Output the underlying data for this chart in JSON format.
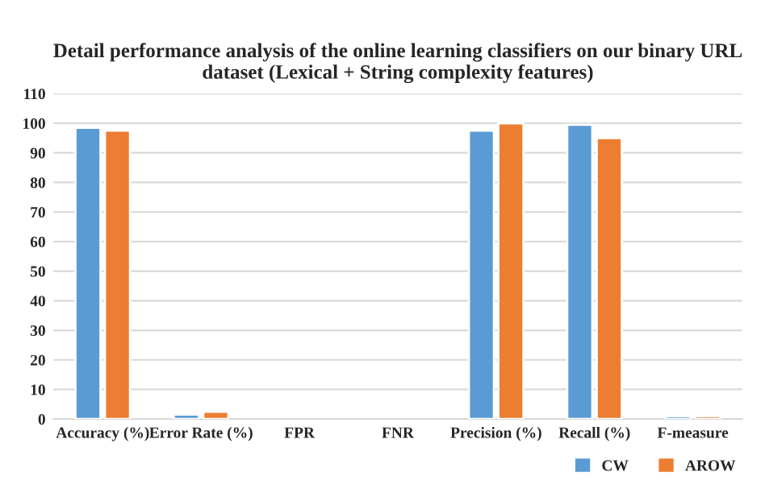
{
  "chart_data": {
    "type": "bar",
    "title": "Detail performance analysis of the online learning classifiers on our binary URL dataset (Lexical + String complexity features)",
    "categories": [
      "Accuracy (%)",
      "Error Rate (%)",
      "FPR",
      "FNR",
      "Precision (%)",
      "Recall (%)",
      "F-measure"
    ],
    "series": [
      {
        "name": "CW",
        "color": "#5b9bd5",
        "values": [
          98.5,
          1.5,
          null,
          null,
          97.5,
          99.5,
          1
        ]
      },
      {
        "name": "AROW",
        "color": "#ed7d31",
        "values": [
          97.5,
          2.5,
          null,
          null,
          100,
          95,
          1
        ]
      }
    ],
    "ylim": [
      0,
      110
    ],
    "yticks": [
      0,
      10,
      20,
      30,
      40,
      50,
      60,
      70,
      80,
      90,
      100,
      110
    ],
    "grid": "y",
    "legend": "bottom right"
  }
}
